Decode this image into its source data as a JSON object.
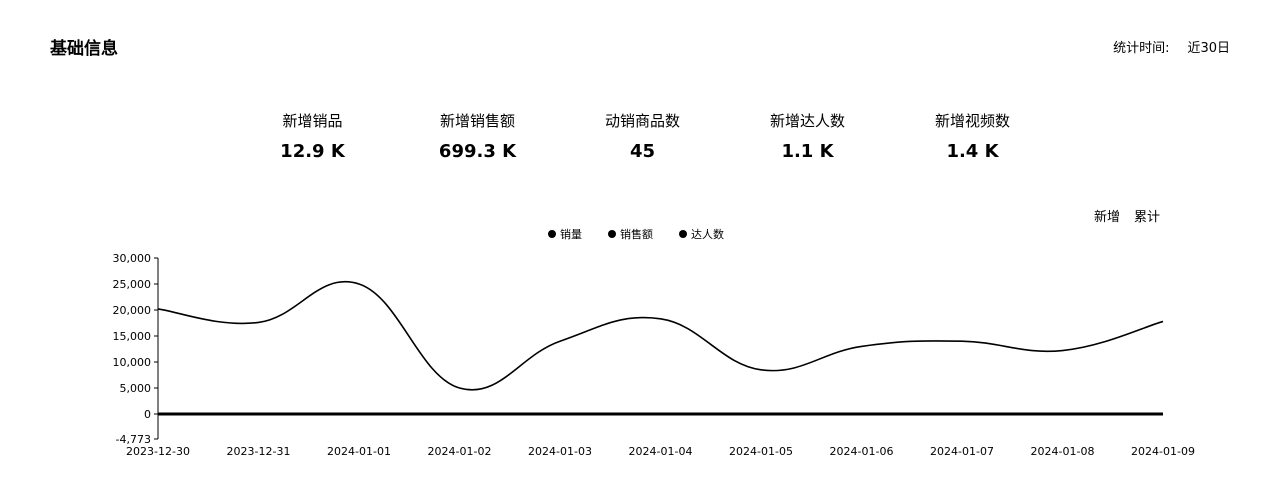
{
  "header": {
    "title": "基础信息",
    "stat_time_label": "统计时间:",
    "stat_time_value": "近30日"
  },
  "kpis": [
    {
      "label": "新增销品",
      "value": "12.9 K"
    },
    {
      "label": "新增销售额",
      "value": "699.3 K"
    },
    {
      "label": "动销商品数",
      "value": "45"
    },
    {
      "label": "新增达人数",
      "value": "1.1 K"
    },
    {
      "label": "新增视频数",
      "value": "1.4 K"
    }
  ],
  "toggle": {
    "new": "新增",
    "cumulative": "累计"
  },
  "chart_data": {
    "type": "line",
    "title": "",
    "xlabel": "",
    "ylabel": "",
    "categories": [
      "2023-12-30",
      "2023-12-31",
      "2024-01-01",
      "2024-01-02",
      "2024-01-03",
      "2024-01-04",
      "2024-01-05",
      "2024-01-06",
      "2024-01-07",
      "2024-01-08",
      "2024-01-09"
    ],
    "y_ticks": [
      "30,000",
      "25,000",
      "20,000",
      "15,000",
      "10,000",
      "5,000",
      "0",
      "-4,773"
    ],
    "y_tick_values": [
      30000,
      25000,
      20000,
      15000,
      10000,
      5000,
      0,
      -4773
    ],
    "ylim": [
      -4773,
      30000
    ],
    "legend_position": "top-center",
    "grid": false,
    "series": [
      {
        "name": "销量",
        "values": [
          20200,
          17600,
          25000,
          5000,
          14000,
          18300,
          8500,
          13000,
          14000,
          12200,
          17800
        ]
      },
      {
        "name": "销售额",
        "values": [
          0,
          0,
          0,
          0,
          0,
          0,
          0,
          0,
          0,
          0,
          0
        ]
      },
      {
        "name": "达人数",
        "values": [
          0,
          0,
          0,
          0,
          0,
          0,
          0,
          0,
          0,
          0,
          0
        ]
      }
    ]
  }
}
